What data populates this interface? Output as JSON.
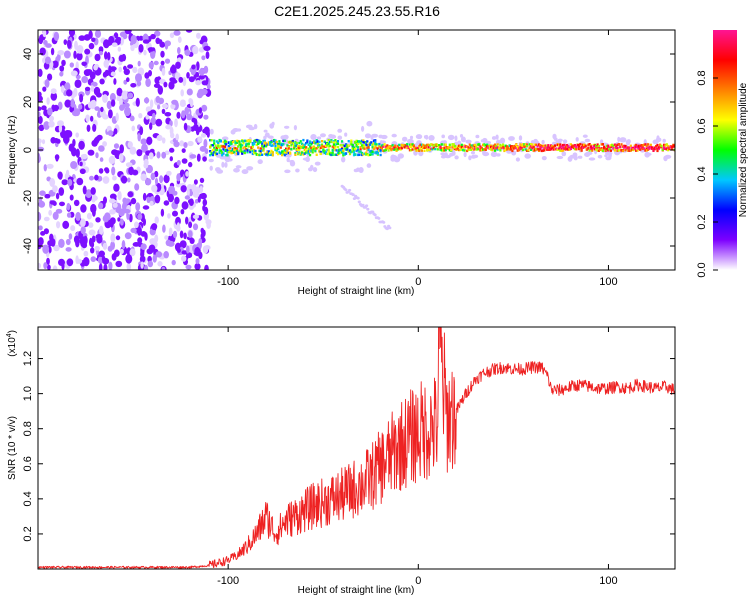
{
  "chart_data": [
    {
      "type": "heatmap",
      "title": "C2E1.2025.245.23.55.R16",
      "xlabel": "Height of straight line (km)",
      "ylabel": "Frequency (Hz)",
      "xlim": [
        -200,
        135
      ],
      "ylim": [
        -50,
        50
      ],
      "x_ticks": [
        -100,
        0,
        100
      ],
      "y_ticks": [
        -40,
        -20,
        0,
        20,
        40
      ],
      "colorbar": {
        "label": "Normalized spectral amplitude",
        "range": [
          0,
          1
        ],
        "ticks": [
          "0.0",
          "0.2",
          "0.4",
          "0.6",
          "0.8"
        ],
        "tick_values": [
          0.0,
          0.2,
          0.4,
          0.6,
          0.8
        ],
        "colors": [
          "#ffffff",
          "#7d00ff",
          "#0000ff",
          "#00c8ff",
          "#00ff00",
          "#ffff00",
          "#ff8000",
          "#ff0000",
          "#ff1493"
        ]
      },
      "regions": {
        "noise_x_range": [
          -200,
          -110
        ],
        "signal_band_center_hz": 1,
        "signal_band_x_range": [
          -110,
          135
        ],
        "side_trace_x_range": [
          -40,
          -15
        ],
        "side_trace_hz_range": [
          -15,
          -33
        ]
      }
    },
    {
      "type": "line",
      "xlabel": "Height of straight line (km)",
      "ylabel": "SNR (10 * v/v)",
      "y_scale_label": "(x10",
      "y_scale_exp": "4",
      "y_multiplier": 10000,
      "xlim": [
        -200,
        135
      ],
      "ylim": [
        0,
        1.38
      ],
      "x_ticks": [
        -100,
        0,
        100
      ],
      "y_ticks": [
        0.2,
        0.4,
        0.6,
        0.8,
        1.0,
        1.2
      ],
      "y_tick_labels": [
        "0.2",
        "0.4",
        "0.6",
        "0.8",
        "1.0",
        "1.2"
      ],
      "color": "#ee2222",
      "series": [
        {
          "name": "SNR",
          "x": [
            -200,
            -120,
            -110,
            -100,
            -95,
            -90,
            -85,
            -80,
            -75,
            -70,
            -65,
            -60,
            -55,
            -50,
            -45,
            -40,
            -35,
            -30,
            -25,
            -20,
            -15,
            -10,
            -5,
            0,
            5,
            10,
            11,
            15,
            20,
            25,
            30,
            35,
            40,
            45,
            50,
            55,
            60,
            65,
            68,
            70,
            75,
            80,
            85,
            90,
            95,
            100,
            105,
            110,
            115,
            120,
            125,
            130,
            135
          ],
          "y": [
            0.01,
            0.01,
            0.02,
            0.05,
            0.08,
            0.13,
            0.2,
            0.3,
            0.2,
            0.27,
            0.3,
            0.33,
            0.36,
            0.38,
            0.4,
            0.42,
            0.45,
            0.48,
            0.52,
            0.58,
            0.64,
            0.7,
            0.74,
            0.78,
            0.8,
            0.82,
            1.28,
            0.86,
            0.9,
            1.0,
            1.08,
            1.12,
            1.14,
            1.15,
            1.14,
            1.14,
            1.15,
            1.15,
            1.1,
            1.02,
            1.02,
            1.04,
            1.05,
            1.04,
            1.03,
            1.03,
            1.04,
            1.03,
            1.05,
            1.04,
            1.03,
            1.04,
            1.02
          ]
        }
      ]
    }
  ]
}
